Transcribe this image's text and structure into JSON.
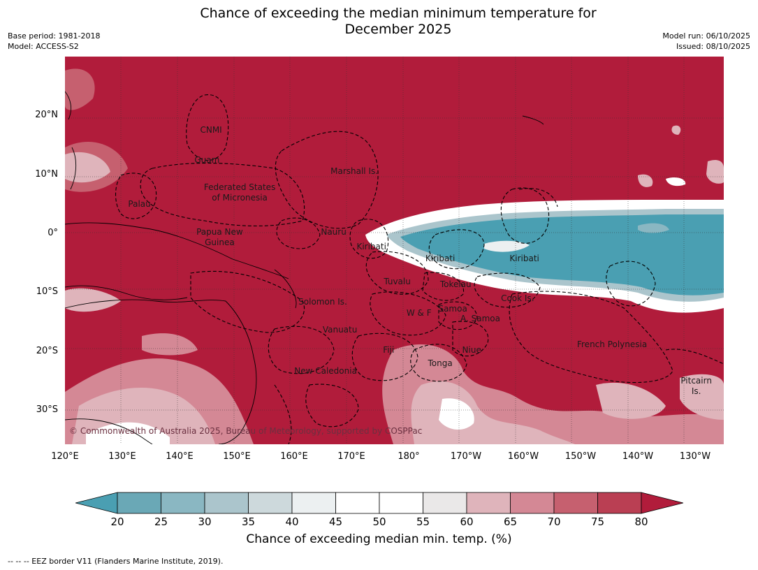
{
  "title": "Chance of exceeding the median minimum temperature for December 2025",
  "title_line1": "Chance of exceeding the median minimum temperature for",
  "title_line2": "December 2025",
  "base_period": "Base period: 1981-2018",
  "model": "Model: ACCESS-S2",
  "model_run": "Model run: 06/10/2025",
  "issued": "Issued: 08/10/2025",
  "copyright": "© Commonwealth of Australia 2025, Bureau of Meteorology, supported by COSPPac",
  "latitude_ticks": [
    "20°N",
    "10°N",
    "0°",
    "10°S",
    "20°S",
    "30°S"
  ],
  "longitude_ticks": [
    "120°E",
    "130°E",
    "140°E",
    "150°E",
    "160°E",
    "170°E",
    "180°",
    "170°W",
    "160°W",
    "150°W",
    "140°W",
    "130°W"
  ],
  "region_labels": [
    {
      "name": "CNMI",
      "lon": 145.5,
      "lat": 17.5
    },
    {
      "name": "Guam",
      "lon": 144.8,
      "lat": 12.5
    },
    {
      "name": "Marshall Is.",
      "lon": 170.5,
      "lat": 10.5
    },
    {
      "name": "Federated States",
      "lon": 150.5,
      "lat": 7.8
    },
    {
      "name": "of Micronesia",
      "lon": 150.5,
      "lat": 6.0
    },
    {
      "name": "Palau",
      "lon": 133.0,
      "lat": 5.0
    },
    {
      "name": "Nauru",
      "lon": 166.9,
      "lat": 0.2
    },
    {
      "name": "Papua New",
      "lon": 147.0,
      "lat": 0.3
    },
    {
      "name": "Guinea",
      "lon": 147.0,
      "lat": -1.5
    },
    {
      "name": "Kiribati",
      "lon": 173.5,
      "lat": -2.2
    },
    {
      "name": "Kiribati",
      "lon": -174.5,
      "lat": -4.3
    },
    {
      "name": "Kiribati",
      "lon": -159.8,
      "lat": -4.3
    },
    {
      "name": "Tuvalu",
      "lon": 178.0,
      "lat": -8.2
    },
    {
      "name": "Tokelau",
      "lon": -171.8,
      "lat": -8.6
    },
    {
      "name": "Cook Is.",
      "lon": -161.0,
      "lat": -11.0
    },
    {
      "name": "Solomon Is.",
      "lon": 165.0,
      "lat": -11.6
    },
    {
      "name": "W & F",
      "lon": -178.2,
      "lat": -13.5
    },
    {
      "name": "Samoa",
      "lon": -172.3,
      "lat": -12.8
    },
    {
      "name": "A. Samoa",
      "lon": -167.5,
      "lat": -14.5
    },
    {
      "name": "Vanuatu",
      "lon": 168.0,
      "lat": -16.4
    },
    {
      "name": "French Polynesia",
      "lon": -144.5,
      "lat": -18.8
    },
    {
      "name": "Fiji",
      "lon": 176.5,
      "lat": -19.8
    },
    {
      "name": "Niue",
      "lon": -169.0,
      "lat": -19.8
    },
    {
      "name": "Tonga",
      "lon": -174.5,
      "lat": -22.0
    },
    {
      "name": "New Caledonia",
      "lon": 165.5,
      "lat": -23.3
    },
    {
      "name": "Pitcairn",
      "lon": -129.8,
      "lat": -25.0
    },
    {
      "name": "Is.",
      "lon": -129.8,
      "lat": -26.8
    }
  ],
  "colorbar": {
    "title": "Chance of exceeding median min. temp. (%)",
    "tick_labels": [
      "20",
      "25",
      "30",
      "35",
      "40",
      "45",
      "50",
      "55",
      "60",
      "65",
      "70",
      "75",
      "80"
    ],
    "colors": [
      "#4a9fb2",
      "#6aa8b6",
      "#8ab7c2",
      "#abc5cc",
      "#cdd9dc",
      "#ecf0f1",
      "#ffffff",
      "#ffffff",
      "#eae8e8",
      "#dfb4bb",
      "#d48895",
      "#c6606f",
      "#ba3f53",
      "#b11c3b"
    ],
    "under_color": "#4a9fb2",
    "over_color": "#b11c3b"
  },
  "footnote": "--  --  -- EEZ border V11 (Flanders Marine Institute, 2019)."
}
